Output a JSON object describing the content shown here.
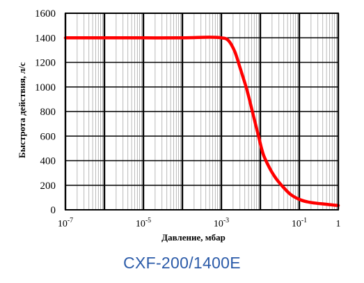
{
  "caption": "CXF-200/1400E",
  "chart_data": {
    "type": "line",
    "title": "",
    "xlabel": "Давление, мбар",
    "ylabel": "Быстрота действия, л/с",
    "xscale": "log",
    "xlim": [
      1e-07,
      1
    ],
    "ylim": [
      0,
      1600
    ],
    "x_ticks": [
      {
        "value": 1e-07,
        "base": "10",
        "exp": "-7"
      },
      {
        "value": 1e-05,
        "base": "10",
        "exp": "-5"
      },
      {
        "value": 0.001,
        "base": "10",
        "exp": "-3"
      },
      {
        "value": 0.1,
        "base": "10",
        "exp": "-1"
      },
      {
        "value": 1,
        "base": "1",
        "exp": ""
      }
    ],
    "y_ticks": [
      0,
      200,
      400,
      600,
      800,
      1000,
      1200,
      1400,
      1600
    ],
    "grid": true,
    "series_color": "#ff0000",
    "series": [
      {
        "x": [
          1e-07,
          1e-06,
          1e-05,
          0.0001,
          0.0005,
          0.001,
          0.0015,
          0.0022,
          0.003,
          0.0045,
          0.0065,
          0.009,
          0.012,
          0.018,
          0.026,
          0.04,
          0.06,
          0.1,
          0.16,
          0.25,
          0.4,
          0.6,
          1
        ],
        "y": [
          1400,
          1400,
          1400,
          1400,
          1405,
          1400,
          1380,
          1290,
          1160,
          980,
          780,
          600,
          450,
          330,
          250,
          180,
          125,
          85,
          65,
          55,
          48,
          42,
          35
        ]
      }
    ]
  }
}
